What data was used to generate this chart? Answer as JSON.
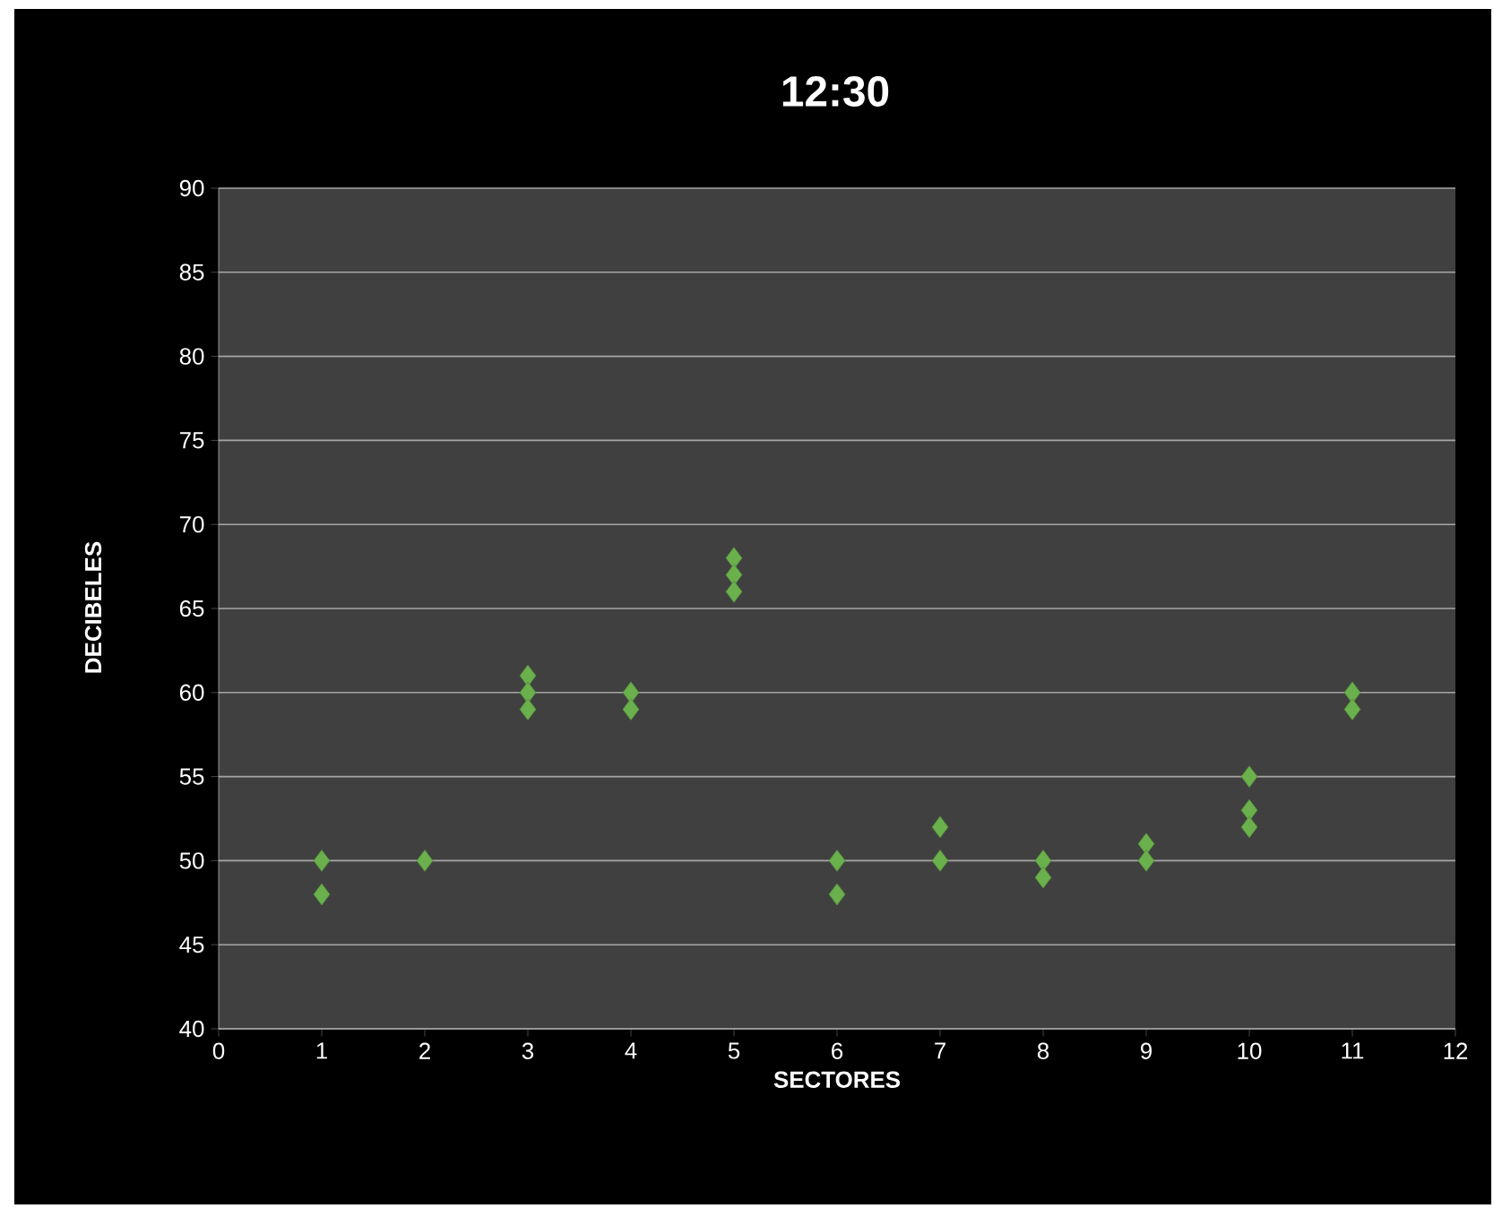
{
  "chart_data": {
    "type": "scatter",
    "title": "12:30",
    "xlabel": "SECTORES",
    "ylabel": "DECIBELES",
    "x": [
      1,
      1,
      2,
      3,
      3,
      3,
      4,
      4,
      5,
      5,
      5,
      6,
      6,
      7,
      7,
      8,
      8,
      9,
      9,
      10,
      10,
      10,
      11,
      11
    ],
    "values": [
      50,
      48,
      50,
      61,
      60,
      59,
      60,
      59,
      68,
      67,
      66,
      50,
      48,
      52,
      50,
      50,
      49,
      51,
      50,
      55,
      53,
      52,
      60,
      59
    ],
    "color": "#6ab04c",
    "marker": "diamond",
    "grid": "y",
    "xlim": [
      0,
      12
    ],
    "xticks": [
      0,
      1,
      2,
      3,
      4,
      5,
      6,
      7,
      8,
      9,
      10,
      11,
      12
    ],
    "ylim": [
      40,
      90
    ],
    "yticks": [
      40,
      45,
      50,
      55,
      60,
      65,
      70,
      75,
      80,
      85,
      90
    ]
  }
}
